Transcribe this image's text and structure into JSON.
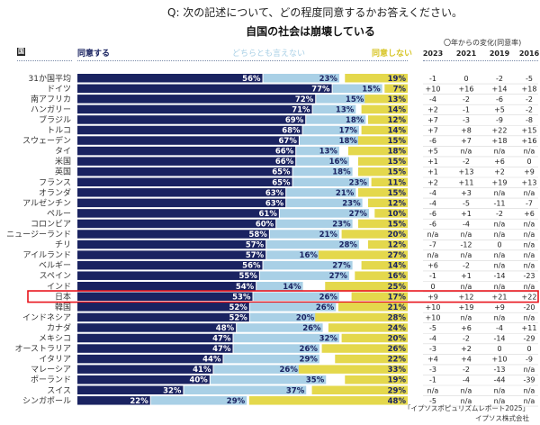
{
  "question": "Q: 次の記述について、どの程度同意するかお答えください。",
  "chart_data": {
    "type": "bar",
    "orientation": "horizontal",
    "stacked": true,
    "title": "自国の社会は崩壊している",
    "subtitle": "Q: 次の記述について、どの程度同意するかお答えください。",
    "country_header": "国",
    "legend": [
      {
        "name": "同意する",
        "color": "#1a2361"
      },
      {
        "name": "どちらとも言えない",
        "color": "#a9d0e6"
      },
      {
        "name": "同意しない",
        "color": "#e4d84c"
      }
    ],
    "change_header": "〇年からの変化(同意率)",
    "change_years": [
      "2023",
      "2021",
      "2019",
      "2016"
    ],
    "highlight": "日本",
    "highlight_color": "#e8141c",
    "categories": [
      "31か国平均",
      "ドイツ",
      "南アフリカ",
      "ハンガリー",
      "ブラジル",
      "トルコ",
      "スウェーデン",
      "タイ",
      "米国",
      "英国",
      "フランス",
      "オランダ",
      "アルゼンチン",
      "ペルー",
      "コロンビア",
      "ニュージーランド",
      "チリ",
      "アイルランド",
      "ベルギー",
      "スペイン",
      "インド",
      "日本",
      "韓国",
      "インドネシア",
      "カナダ",
      "メキシコ",
      "オーストラリア",
      "イタリア",
      "マレーシア",
      "ポーランド",
      "スイス",
      "シンガポール"
    ],
    "series": [
      {
        "name": "同意する",
        "values": [
          56,
          77,
          72,
          71,
          69,
          68,
          67,
          66,
          66,
          65,
          65,
          63,
          63,
          61,
          60,
          58,
          57,
          57,
          56,
          55,
          54,
          53,
          52,
          52,
          48,
          47,
          47,
          44,
          41,
          40,
          32,
          22
        ]
      },
      {
        "name": "どちらとも言えない",
        "values": [
          23,
          15,
          15,
          13,
          18,
          17,
          18,
          13,
          16,
          18,
          23,
          21,
          23,
          27,
          23,
          21,
          28,
          16,
          27,
          27,
          14,
          26,
          26,
          20,
          26,
          32,
          26,
          29,
          26,
          35,
          37,
          29
        ]
      },
      {
        "name": "同意しない",
        "values": [
          19,
          7,
          13,
          14,
          12,
          14,
          15,
          18,
          15,
          15,
          11,
          15,
          12,
          10,
          15,
          20,
          12,
          27,
          14,
          16,
          25,
          17,
          21,
          28,
          24,
          20,
          26,
          22,
          33,
          19,
          29,
          48
        ]
      }
    ],
    "changes": [
      [
        "-1",
        "0",
        "-2",
        "-5"
      ],
      [
        "+10",
        "+16",
        "+14",
        "+18"
      ],
      [
        "-4",
        "-2",
        "-6",
        "-2"
      ],
      [
        "+2",
        "-1",
        "+5",
        "-2"
      ],
      [
        "+7",
        "-3",
        "-9",
        "-8"
      ],
      [
        "+7",
        "+8",
        "+22",
        "+15"
      ],
      [
        "-6",
        "+7",
        "+18",
        "+16"
      ],
      [
        "+5",
        "n/a",
        "n/a",
        "n/a"
      ],
      [
        "+1",
        "-2",
        "+6",
        "0"
      ],
      [
        "+1",
        "+13",
        "+2",
        "+9"
      ],
      [
        "+2",
        "+11",
        "+19",
        "+13"
      ],
      [
        "-4",
        "+3",
        "n/a",
        "n/a"
      ],
      [
        "-4",
        "-5",
        "-11",
        "-7"
      ],
      [
        "-6",
        "+1",
        "-2",
        "+6"
      ],
      [
        "-6",
        "-4",
        "n/a",
        "n/a"
      ],
      [
        "n/a",
        "n/a",
        "n/a",
        "n/a"
      ],
      [
        "-7",
        "-12",
        "0",
        "n/a"
      ],
      [
        "n/a",
        "n/a",
        "n/a",
        "n/a"
      ],
      [
        "+6",
        "-2",
        "n/a",
        "n/a"
      ],
      [
        "-1",
        "+1",
        "-14",
        "-23"
      ],
      [
        "0",
        "n/a",
        "n/a",
        "n/a"
      ],
      [
        "+9",
        "+12",
        "+21",
        "+22"
      ],
      [
        "+10",
        "+19",
        "+9",
        "-20"
      ],
      [
        "+10",
        "n/a",
        "n/a",
        "n/a"
      ],
      [
        "-5",
        "+6",
        "-4",
        "+11"
      ],
      [
        "-4",
        "-2",
        "-14",
        "-29"
      ],
      [
        "-3",
        "+2",
        "0",
        "0"
      ],
      [
        "+4",
        "+4",
        "+10",
        "-9"
      ],
      [
        "-3",
        "-2",
        "-13",
        "n/a"
      ],
      [
        "-1",
        "-4",
        "-44",
        "-39"
      ],
      [
        "n/a",
        "n/a",
        "n/a",
        "n/a"
      ],
      [
        "-5",
        "n/a",
        "n/a",
        "n/a"
      ]
    ],
    "xlim": [
      0,
      100
    ],
    "unit": "%"
  },
  "footer": {
    "source": "「イプソスポピュリズムレポート2025」",
    "company": "イプソス株式会社"
  }
}
